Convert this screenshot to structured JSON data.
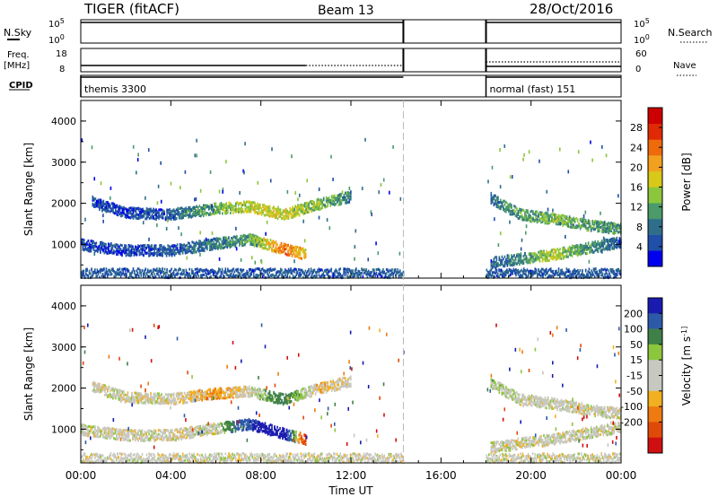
{
  "header": {
    "radar": "TIGER (fitACF)",
    "beam": "Beam 13",
    "date": "28/Oct/2016"
  },
  "noise_panel": {
    "left_label": "N.Sky",
    "right_label": "N.Search",
    "ticks_left": [
      "10^5",
      "10^0"
    ],
    "ticks_right": [
      "10^5",
      "10^0"
    ]
  },
  "freq_panel": {
    "left_label_1": "Freq.",
    "left_label_2": "[MHz]",
    "right_label": "Nave",
    "ticks_left": [
      "18",
      "8"
    ],
    "ticks_right": [
      "60",
      "0"
    ]
  },
  "cpid_panel": {
    "label": "CPID",
    "segments": [
      {
        "text": "themis 3300",
        "start": 0.0,
        "end": 14.33
      },
      {
        "text": "normal (fast) 151",
        "start": 18.0,
        "end": 24.0
      }
    ]
  },
  "gap_hours": [
    14.33,
    18.0
  ],
  "x_axis": {
    "label": "Time UT",
    "ticks": [
      "00:00",
      "04:00",
      "08:00",
      "12:00",
      "16:00",
      "20:00",
      "00:00"
    ],
    "range": [
      0,
      24
    ]
  },
  "chart_data": [
    {
      "type": "heatmap",
      "panel": "power",
      "ylabel": "Slant Range [km]",
      "ylim": [
        180,
        4500
      ],
      "yticks": [
        "1000",
        "2000",
        "3000",
        "4000"
      ],
      "colorbar_label": "Power [dB]",
      "colorbar_ticks": [
        "4",
        "8",
        "12",
        "16",
        "20",
        "24",
        "28"
      ],
      "colorbar_colors": [
        "#0000ee",
        "#1f4fa8",
        "#2f6e8a",
        "#4a9a6a",
        "#8cc63c",
        "#d8c818",
        "#f2a11f",
        "#ee6a0a",
        "#e02a06",
        "#cc0000"
      ],
      "features": [
        {
          "name": "echo-band-1",
          "x": [
            0.5,
            2,
            4,
            6,
            7.5,
            9,
            10.5,
            12
          ],
          "y": [
            2060,
            1800,
            1760,
            1900,
            1950,
            1750,
            2000,
            2200
          ],
          "level": [
            0.1,
            0.1,
            0.15,
            0.4,
            0.5,
            0.55,
            0.4,
            0.25
          ]
        },
        {
          "name": "echo-band-2",
          "x": [
            0,
            2,
            4,
            6,
            7.5,
            9,
            10
          ],
          "y": [
            1020,
            880,
            880,
            1050,
            1150,
            920,
            780
          ],
          "level": [
            0.1,
            0.1,
            0.15,
            0.25,
            0.35,
            0.75,
            0.6
          ]
        },
        {
          "name": "echo-band-3",
          "x": [
            18.2,
            19.5,
            21,
            22.5,
            24
          ],
          "y": [
            2150,
            1750,
            1650,
            1500,
            1400
          ],
          "level": [
            0.2,
            0.35,
            0.4,
            0.35,
            0.3
          ]
        },
        {
          "name": "echo-band-4",
          "x": [
            18.2,
            19.5,
            21,
            22.5,
            24
          ],
          "y": [
            580,
            680,
            780,
            940,
            1080
          ],
          "level": [
            0.15,
            0.3,
            0.5,
            0.3,
            0.15
          ]
        }
      ]
    },
    {
      "type": "heatmap",
      "panel": "velocity",
      "ylabel": "Slant Range [km]",
      "ylim": [
        180,
        4500
      ],
      "yticks": [
        "1000",
        "2000",
        "3000",
        "4000"
      ],
      "colorbar_label": "Velocity [m s^-1]",
      "colorbar_ticks": [
        "200",
        "100",
        "50",
        "15",
        "-15",
        "-50",
        "-100",
        "-200"
      ],
      "colorbar_colors": [
        "#1a1ab0",
        "#2d5aa8",
        "#3f8048",
        "#8cc63c",
        "#c8c8c0",
        "#c8c8c0",
        "#f2b020",
        "#ee7a10",
        "#e04a08",
        "#d01010"
      ],
      "features": [
        {
          "name": "echo-band-1",
          "x": [
            0.5,
            2,
            4,
            6,
            7.5,
            9,
            10.5,
            12
          ],
          "y": [
            2060,
            1800,
            1760,
            1900,
            1950,
            1750,
            2000,
            2200
          ],
          "velocity": [
            0,
            0,
            0,
            -30,
            0,
            60,
            -20,
            0
          ]
        },
        {
          "name": "echo-band-2",
          "x": [
            0,
            2,
            4,
            6,
            7.5,
            9,
            10
          ],
          "y": [
            1020,
            880,
            880,
            1050,
            1150,
            920,
            780
          ],
          "velocity": [
            0,
            0,
            0,
            0,
            150,
            200,
            -150
          ]
        },
        {
          "name": "echo-band-3",
          "x": [
            18.2,
            19.5,
            21,
            22.5,
            24
          ],
          "y": [
            2150,
            1750,
            1650,
            1500,
            1400
          ],
          "velocity": [
            20,
            0,
            0,
            0,
            0
          ]
        },
        {
          "name": "echo-band-4",
          "x": [
            18.2,
            19.5,
            21,
            22.5,
            24
          ],
          "y": [
            580,
            680,
            780,
            940,
            1080
          ],
          "velocity": [
            0,
            0,
            0,
            0,
            0
          ]
        }
      ]
    }
  ]
}
